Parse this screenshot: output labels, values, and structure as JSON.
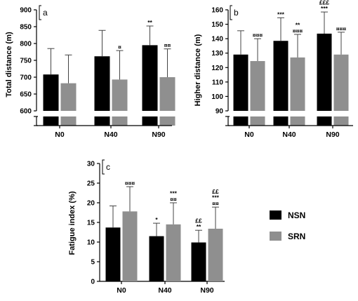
{
  "legend": [
    {
      "name": "NSN",
      "color": "#000000"
    },
    {
      "name": "SRN",
      "color": "#8f8f8f"
    }
  ],
  "chart_data": [
    {
      "type": "bar",
      "panel": "a",
      "ylabel": "Total distance (m)",
      "ylim": [
        600,
        900
      ],
      "yticks": [
        600,
        650,
        700,
        750,
        800,
        850,
        900
      ],
      "broken_axis_low": 0,
      "categories": [
        "N0",
        "N40",
        "N90"
      ],
      "series": [
        {
          "name": "NSN",
          "color": "#000000",
          "values": [
            708,
            762,
            795
          ],
          "errors": [
            77,
            77,
            57
          ]
        },
        {
          "name": "SRN",
          "color": "#8f8f8f",
          "values": [
            682,
            693,
            700
          ],
          "errors": [
            84,
            86,
            84
          ]
        }
      ],
      "annotations": [
        {
          "series": 0,
          "category": 2,
          "lines": [
            "**"
          ]
        },
        {
          "series": 1,
          "category": 1,
          "lines": [
            "¤"
          ]
        },
        {
          "series": 1,
          "category": 2,
          "lines": [
            "¤¤"
          ]
        }
      ]
    },
    {
      "type": "bar",
      "panel": "b",
      "ylabel": "Higher distance (m)",
      "ylim": [
        90,
        160
      ],
      "yticks": [
        90,
        100,
        110,
        120,
        130,
        140,
        150,
        160
      ],
      "broken_axis_low": 0,
      "categories": [
        "N0",
        "N40",
        "N90"
      ],
      "series": [
        {
          "name": "NSN",
          "color": "#000000",
          "values": [
            129,
            138.5,
            143.5
          ],
          "errors": [
            16.5,
            16,
            15
          ]
        },
        {
          "name": "SRN",
          "color": "#8f8f8f",
          "values": [
            124.5,
            127,
            129
          ],
          "errors": [
            15.5,
            16,
            15.5
          ]
        }
      ],
      "annotations": [
        {
          "series": 0,
          "category": 1,
          "lines": [
            "***"
          ]
        },
        {
          "series": 0,
          "category": 2,
          "lines": [
            "£££",
            "***"
          ]
        },
        {
          "series": 1,
          "category": 0,
          "lines": [
            "¤¤¤"
          ]
        },
        {
          "series": 1,
          "category": 1,
          "lines": [
            "**",
            "¤¤¤"
          ]
        },
        {
          "series": 1,
          "category": 2,
          "lines": [
            "¤¤¤"
          ]
        }
      ]
    },
    {
      "type": "bar",
      "panel": "c",
      "ylabel": "Fatigue index (%)",
      "ylim": [
        0,
        30
      ],
      "yticks": [
        0,
        5,
        10,
        15,
        20,
        25,
        30
      ],
      "categories": [
        "N0",
        "N40",
        "N90"
      ],
      "series": [
        {
          "name": "NSN",
          "color": "#000000",
          "values": [
            13.7,
            11.5,
            9.9
          ],
          "errors": [
            5.5,
            3.3,
            3.1
          ]
        },
        {
          "name": "SRN",
          "color": "#8f8f8f",
          "values": [
            17.8,
            14.5,
            13.4
          ],
          "errors": [
            6.3,
            5.5,
            5.5
          ]
        }
      ],
      "annotations": [
        {
          "series": 0,
          "category": 1,
          "lines": [
            "*"
          ]
        },
        {
          "series": 0,
          "category": 2,
          "lines": [
            "££",
            "**"
          ]
        },
        {
          "series": 1,
          "category": 0,
          "lines": [
            "¤¤¤"
          ]
        },
        {
          "series": 1,
          "category": 1,
          "lines": [
            "***",
            "¤¤"
          ]
        },
        {
          "series": 1,
          "category": 2,
          "lines": [
            "££",
            "***",
            "¤¤"
          ]
        }
      ]
    }
  ]
}
